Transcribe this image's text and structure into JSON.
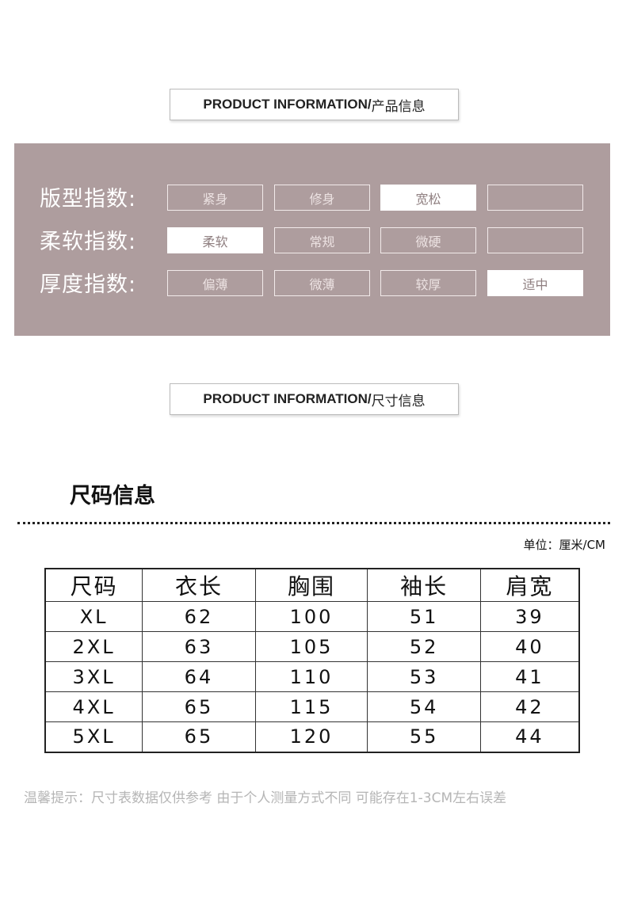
{
  "section1": {
    "title_en": "PRODUCT INFORMATION/",
    "title_cn": "产品信息"
  },
  "indices": [
    {
      "label": "版型指数:",
      "options": [
        "紧身",
        "修身",
        "宽松",
        ""
      ],
      "selected": 2
    },
    {
      "label": "柔软指数:",
      "options": [
        "柔软",
        "常规",
        "微硬",
        ""
      ],
      "selected": 0
    },
    {
      "label": "厚度指数:",
      "options": [
        "偏薄",
        "微薄",
        "较厚",
        "适中"
      ],
      "selected": 3
    }
  ],
  "panel_color": "#ae9d9e",
  "section2": {
    "title_en": "PRODUCT INFORMATION/",
    "title_cn": "尺寸信息"
  },
  "size_title": "尺码信息",
  "unit": "单位：厘米/CM",
  "table": {
    "headers": [
      "尺码",
      "衣长",
      "胸围",
      "袖长",
      "肩宽"
    ],
    "rows": [
      [
        "XL",
        "62",
        "100",
        "51",
        "39"
      ],
      [
        "2XL",
        "63",
        "105",
        "52",
        "40"
      ],
      [
        "3XL",
        "64",
        "110",
        "53",
        "41"
      ],
      [
        "4XL",
        "65",
        "115",
        "54",
        "42"
      ],
      [
        "5XL",
        "65",
        "120",
        "55",
        "44"
      ]
    ]
  },
  "tip": "温馨提示：尺寸表数据仅供参考 由于个人测量方式不同 可能存在1-3CM左右误差"
}
